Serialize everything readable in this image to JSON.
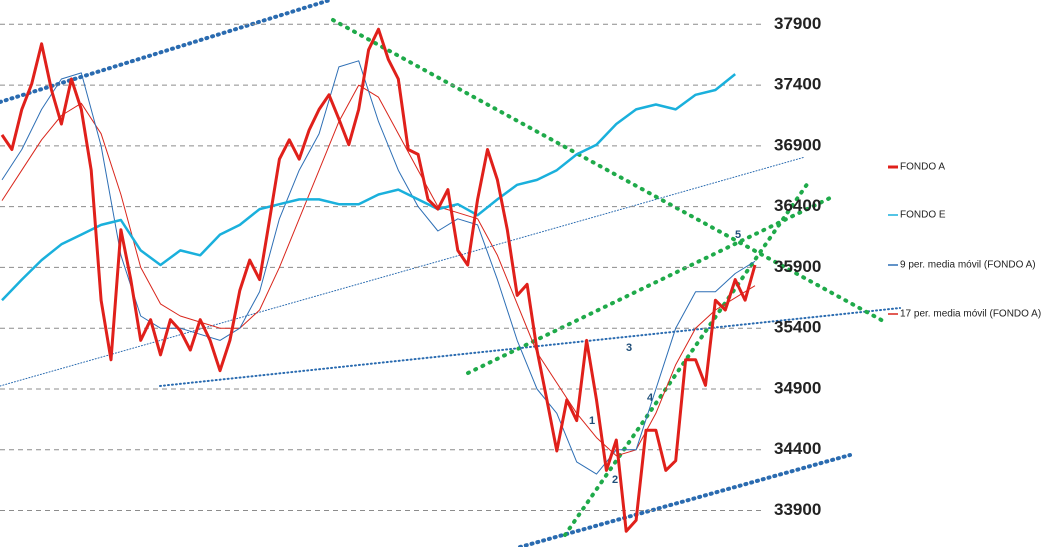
{
  "chart_data": {
    "type": "line",
    "ylim": [
      33600,
      38100
    ],
    "yticks": [
      33900,
      34400,
      34900,
      35400,
      35900,
      36400,
      36900,
      37400,
      37900
    ],
    "grid": true,
    "legend": "right",
    "annotations": [
      "1",
      "2",
      "3",
      "4",
      "5"
    ],
    "series": [
      {
        "name": "FONDO A",
        "color": "#e0201b",
        "x": [
          0,
          1,
          2,
          3,
          4,
          5,
          6,
          7,
          8,
          9,
          10,
          11,
          12,
          13,
          14,
          15,
          16,
          17,
          18,
          19,
          20,
          21,
          22,
          23,
          24,
          25,
          26,
          27,
          28,
          29,
          30,
          31,
          32,
          33,
          34,
          35,
          36,
          37,
          38,
          39,
          40,
          41,
          42,
          43,
          44,
          45,
          46,
          47,
          48,
          49,
          50,
          51,
          52,
          53,
          54,
          55,
          56,
          57,
          58,
          59,
          60,
          61,
          62,
          63,
          64,
          65,
          66,
          67,
          68,
          69,
          70,
          71,
          72,
          73,
          74,
          75,
          76
        ],
        "values": [
          36990,
          36870,
          37200,
          37410,
          37740,
          37360,
          37080,
          37450,
          37200,
          36700,
          35630,
          35140,
          36210,
          35800,
          35300,
          35470,
          35180,
          35470,
          35380,
          35220,
          35470,
          35300,
          35050,
          35300,
          35710,
          35960,
          35800,
          36290,
          36790,
          36950,
          36790,
          37030,
          37200,
          37320,
          37120,
          36910,
          37200,
          37690,
          37860,
          37610,
          37450,
          36870,
          36830,
          36460,
          36380,
          36540,
          36040,
          35920,
          36460,
          36870,
          36620,
          36210,
          35670,
          35760,
          35220,
          34810,
          34390,
          34810,
          34640,
          35300,
          34810,
          34230,
          34480,
          33730,
          33820,
          34560,
          34560,
          34230,
          34310,
          35140,
          35140,
          34930,
          35630,
          35550,
          35800,
          35630,
          35920
        ]
      },
      {
        "name": "FONDO E",
        "color": "#1ab0dc",
        "x": [
          0,
          2,
          4,
          6,
          8,
          10,
          12,
          14,
          16,
          18,
          20,
          22,
          24,
          26,
          28,
          30,
          32,
          34,
          36,
          38,
          40,
          42,
          44,
          46,
          48,
          50,
          52,
          54,
          56,
          58,
          60,
          62,
          64,
          66,
          68,
          70,
          72,
          74
        ],
        "values": [
          35630,
          35800,
          35960,
          36090,
          36170,
          36250,
          36290,
          36040,
          35920,
          36040,
          36000,
          36170,
          36250,
          36380,
          36420,
          36460,
          36460,
          36420,
          36420,
          36500,
          36540,
          36460,
          36380,
          36420,
          36330,
          36460,
          36580,
          36620,
          36700,
          36830,
          36910,
          37080,
          37200,
          37240,
          37200,
          37320,
          37360,
          37490
        ]
      },
      {
        "name": "9 per. media móvil (FONDO A)",
        "color": "#2e6fb5",
        "x": [
          0,
          2,
          4,
          6,
          8,
          10,
          12,
          14,
          16,
          18,
          20,
          22,
          24,
          26,
          28,
          30,
          32,
          34,
          36,
          38,
          40,
          42,
          44,
          46,
          48,
          50,
          52,
          54,
          56,
          58,
          60,
          62,
          64,
          66,
          68,
          70,
          72,
          74,
          76
        ],
        "values": [
          36620,
          36870,
          37200,
          37450,
          37500,
          36900,
          36000,
          35500,
          35400,
          35400,
          35350,
          35300,
          35400,
          35700,
          36300,
          36700,
          37000,
          37550,
          37600,
          37100,
          36700,
          36400,
          36200,
          36300,
          36250,
          35800,
          35300,
          34900,
          34700,
          34300,
          34200,
          34400,
          34400,
          34900,
          35400,
          35700,
          35700,
          35850,
          35950
        ]
      },
      {
        "name": "17 per. media móvil (FONDO A)",
        "color": "#d9261c",
        "x": [
          0,
          2,
          4,
          6,
          8,
          10,
          12,
          14,
          16,
          18,
          20,
          22,
          24,
          26,
          28,
          30,
          32,
          34,
          36,
          38,
          40,
          42,
          44,
          46,
          48,
          50,
          52,
          54,
          56,
          58,
          60,
          62,
          64,
          66,
          68,
          70,
          72,
          74,
          76
        ],
        "values": [
          36450,
          36700,
          36950,
          37150,
          37250,
          37000,
          36500,
          35900,
          35600,
          35500,
          35450,
          35400,
          35400,
          35550,
          35900,
          36300,
          36700,
          37100,
          37400,
          37300,
          37000,
          36700,
          36400,
          36350,
          36300,
          36000,
          35600,
          35200,
          34950,
          34700,
          34500,
          34350,
          34400,
          34700,
          35100,
          35400,
          35550,
          35650,
          35750
        ]
      }
    ]
  }
}
